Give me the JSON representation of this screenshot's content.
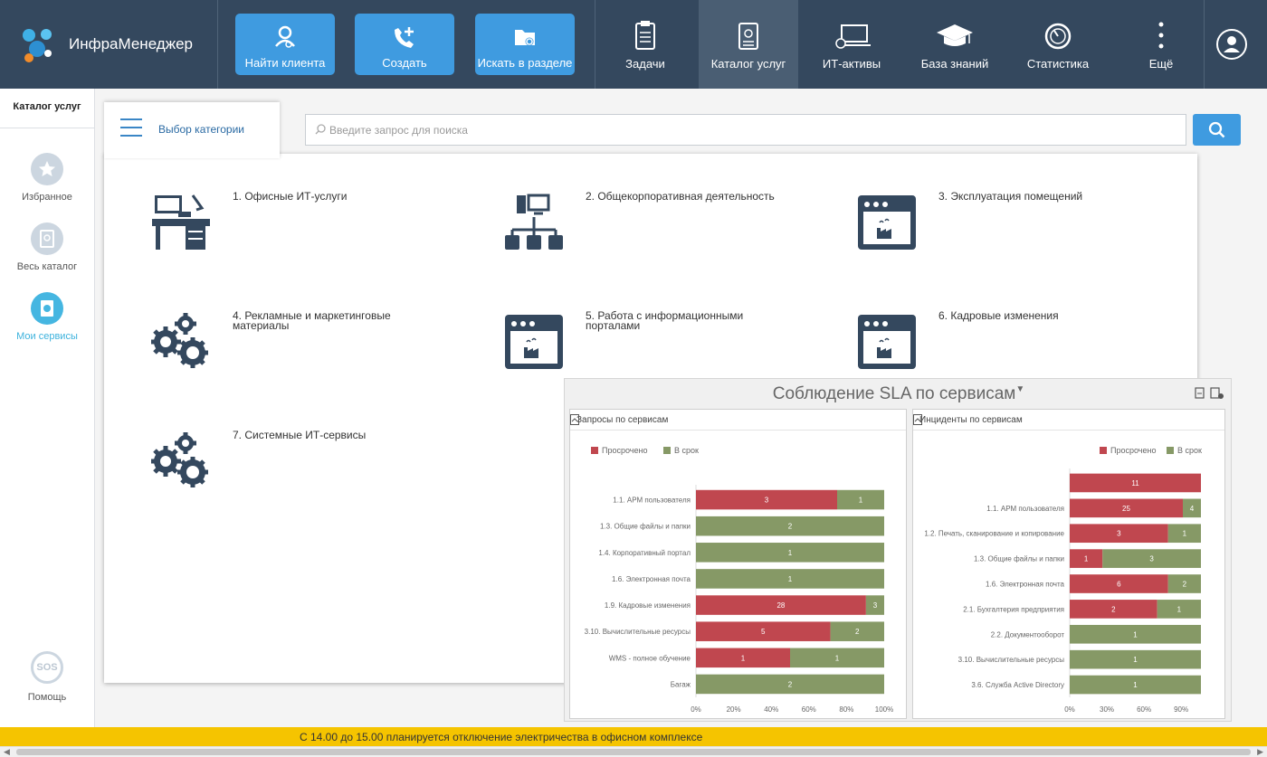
{
  "app": {
    "name": "ИнфраМенеджер"
  },
  "header": {
    "actions": [
      {
        "label": "Найти клиента",
        "icon": "user-search-icon"
      },
      {
        "label": "Создать",
        "icon": "phone-plus-icon"
      },
      {
        "label": "Искать в разделе",
        "icon": "folder-search-icon"
      }
    ],
    "nav": [
      {
        "label": "Задачи",
        "icon": "clipboard-icon"
      },
      {
        "label": "Каталог услуг",
        "icon": "catalog-icon",
        "active": true
      },
      {
        "label": "ИТ-активы",
        "icon": "laptop-icon"
      },
      {
        "label": "База знаний",
        "icon": "graduation-cap-icon"
      },
      {
        "label": "Статистика",
        "icon": "gauge-icon"
      },
      {
        "label": "Ещё",
        "icon": "more-vertical-icon"
      }
    ]
  },
  "sidebar": {
    "title": "Каталог услуг",
    "items": [
      {
        "label": "Избранное",
        "icon": "star-icon"
      },
      {
        "label": "Весь каталог",
        "icon": "book-icon"
      },
      {
        "label": "Мои сервисы",
        "icon": "my-services-icon",
        "active": true
      }
    ],
    "help": {
      "badge": "SOS",
      "label": "Помощь"
    }
  },
  "catalog": {
    "category_tab_label": "Выбор категории",
    "search_placeholder": "Введите запрос для поиска",
    "categories": [
      {
        "label": "1. Офисные ИТ-услуги",
        "icon": "office-desk-icon"
      },
      {
        "label": "2. Общекорпоративная деятельность",
        "icon": "network-icon"
      },
      {
        "label": "3. Эксплуатация помещений",
        "icon": "factory-window-icon"
      },
      {
        "label": "4. Рекламные и маркетинговые материалы",
        "icon": "gears-icon"
      },
      {
        "label": "5. Работа с информационными порталами",
        "icon": "factory-window-icon"
      },
      {
        "label": "6. Кадровые изменения",
        "icon": "factory-window-icon"
      },
      {
        "label": "7. Системные ИТ-сервисы",
        "icon": "gears-icon"
      }
    ]
  },
  "sla": {
    "title": "Соблюдение SLA по сервисам",
    "colors": {
      "overdue": "#c0474f",
      "ontime": "#869966"
    }
  },
  "chart_data": [
    {
      "type": "bar",
      "orientation": "horizontal",
      "stacked": "percent",
      "title": "Запросы по сервисам",
      "legend_position": "top-right",
      "categories": [
        "1.1. АРМ пользователя",
        "1.3. Общие файлы и папки",
        "1.4. Корпоративный портал",
        "1.6. Электронная почта",
        "1.9. Кадровые изменения",
        "3.10. Вычислительные ресурсы",
        "WMS - полное обучение",
        "Багаж"
      ],
      "series": [
        {
          "name": "Просрочено",
          "values": [
            3,
            0,
            0,
            0,
            28,
            5,
            1,
            0
          ]
        },
        {
          "name": "В срок",
          "values": [
            1,
            2,
            1,
            1,
            3,
            2,
            1,
            2
          ]
        }
      ],
      "xticks": [
        "0%",
        "20%",
        "40%",
        "60%",
        "80%",
        "100%"
      ]
    },
    {
      "type": "bar",
      "orientation": "horizontal",
      "stacked": "percent",
      "title": "Инциденты по сервисам",
      "legend_position": "top-right",
      "categories": [
        "",
        "1.1. АРМ пользователя",
        "1.2. Печать, сканирование и копирование",
        "1.3. Общие файлы и папки",
        "1.6. Электронная почта",
        "2.1. Бухгалтерия предприятия",
        "2.2. Документооборот",
        "3.10. Вычислительные ресурсы",
        "3.6. Служба Active Directory"
      ],
      "series": [
        {
          "name": "Просрочено",
          "values": [
            11,
            25,
            3,
            1,
            6,
            2,
            0,
            0,
            0
          ]
        },
        {
          "name": "В срок",
          "values": [
            0,
            4,
            1,
            3,
            2,
            1,
            1,
            1,
            1
          ]
        }
      ],
      "xticks": [
        "0%",
        "30%",
        "60%",
        "90%"
      ]
    }
  ],
  "notice": {
    "text": "С 14.00 до 15.00 планируется отключение электричества в офисном комплексе"
  }
}
